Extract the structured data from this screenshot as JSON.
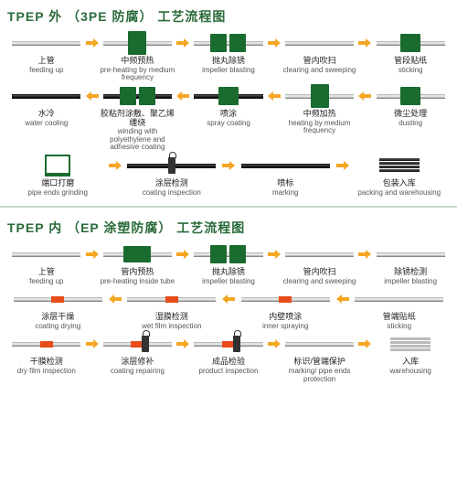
{
  "arrow_color": "#f5a623",
  "green": "#1a6b2f",
  "chart1": {
    "title": "TPEP 外 （3PE 防腐） 工艺流程图",
    "rows": [
      {
        "dir": "right",
        "steps": [
          {
            "cn": "上管",
            "en": "feeding up",
            "icon": "pipe"
          },
          {
            "cn": "中频预热",
            "en": "pre-heating by medium frequency",
            "icon": "green-tall"
          },
          {
            "cn": "抛丸除锈",
            "en": "impeller blasting",
            "icon": "green-dual"
          },
          {
            "cn": "管内吹扫",
            "en": "clearing and sweeping",
            "icon": "pipe"
          },
          {
            "cn": "管段贴纸",
            "en": "sticking",
            "icon": "green-box"
          }
        ]
      },
      {
        "dir": "left",
        "steps": [
          {
            "cn": "水冷",
            "en": "water cooling",
            "icon": "pipe-black"
          },
          {
            "cn": "胶粘剂涂敷、聚乙烯缠绕",
            "en": "winding with polyethylene and adhesive coating",
            "icon": "green-dual-black"
          },
          {
            "cn": "喷涂",
            "en": "spray coating",
            "icon": "green-box-black"
          },
          {
            "cn": "中频加热",
            "en": "heating by medium frequency",
            "icon": "green-tall"
          },
          {
            "cn": "微尘处理",
            "en": "dusting",
            "icon": "green-box"
          }
        ]
      },
      {
        "dir": "right",
        "steps": [
          {
            "cn": "端口打磨",
            "en": "pipe ends grinding",
            "icon": "grinder"
          },
          {
            "cn": "涂层检测",
            "en": "coating inspection",
            "icon": "spray-black"
          },
          {
            "cn": "喷标",
            "en": "marking",
            "icon": "pipe-black"
          },
          {
            "cn": "包装入库",
            "en": "packing and warehousing",
            "icon": "stack"
          }
        ]
      }
    ]
  },
  "chart2": {
    "title": "TPEP 内 （EP 涂塑防腐） 工艺流程图",
    "rows": [
      {
        "dir": "right",
        "steps": [
          {
            "cn": "上管",
            "en": "feeding up",
            "icon": "pipe"
          },
          {
            "cn": "管内预热",
            "en": "pre-heating inside tube",
            "icon": "green-wide"
          },
          {
            "cn": "抛丸除锈",
            "en": "impeller blasting",
            "icon": "green-dual"
          },
          {
            "cn": "管内吹扫",
            "en": "clearing and sweeping",
            "icon": "pipe"
          },
          {
            "cn": "除锈检测",
            "en": "impeller blasting",
            "icon": "pipe"
          }
        ]
      },
      {
        "dir": "left",
        "steps": [
          {
            "cn": "涂层干燥",
            "en": "coating drying",
            "icon": "red-band"
          },
          {
            "cn": "湿膜检测",
            "en": "wet film inspection",
            "icon": "red-band"
          },
          {
            "cn": "内壁喷涂",
            "en": "inner spraying",
            "icon": "red-band"
          },
          {
            "cn": "管端贴纸",
            "en": "sticking",
            "icon": "pipe"
          }
        ]
      },
      {
        "dir": "right",
        "steps": [
          {
            "cn": "干膜检测",
            "en": "dry film inspection",
            "icon": "red-band"
          },
          {
            "cn": "涂层修补",
            "en": "coating repairing",
            "icon": "spray-red"
          },
          {
            "cn": "成品检验",
            "en": "product inspection",
            "icon": "spray-red"
          },
          {
            "cn": "标识/管端保护",
            "en": "marking/ pipe ends protection",
            "icon": "pipe"
          },
          {
            "cn": "入库",
            "en": "warehousing",
            "icon": "stack-gray"
          }
        ]
      }
    ]
  }
}
